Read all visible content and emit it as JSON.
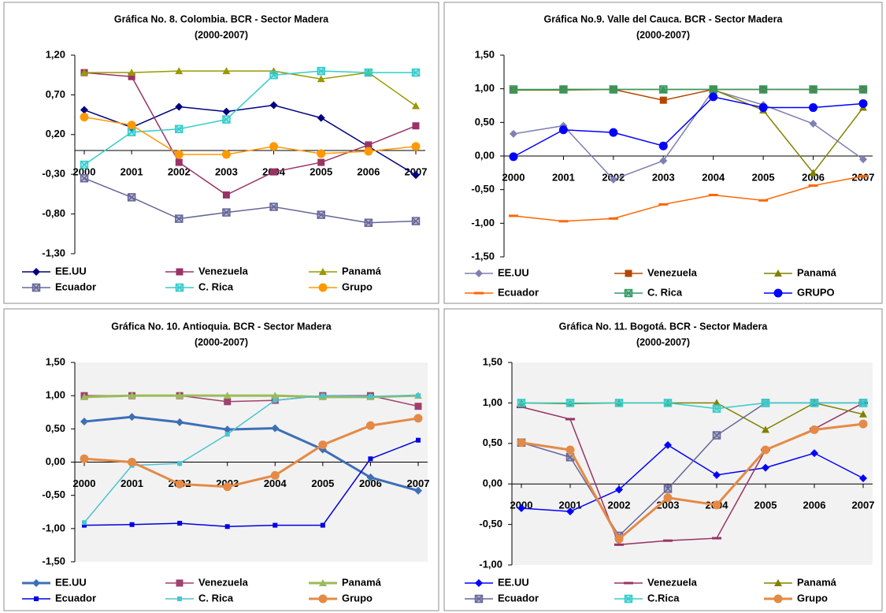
{
  "chart_data": [
    {
      "type": "line",
      "title": "Gráfica No. 8.  Colombia. BCR - Sector Madera",
      "subtitle": "(2000-2007)",
      "categories": [
        "2000",
        "2001",
        "2002",
        "2003",
        "2004",
        "2005",
        "2006",
        "2007"
      ],
      "ylim": [
        -1.3,
        1.2
      ],
      "yticks": [
        {
          "value": -1.3,
          "label": "-1,30"
        },
        {
          "value": -0.8,
          "label": "-0,80"
        },
        {
          "value": -0.3,
          "label": "-0,30"
        },
        {
          "value": 0.2,
          "label": "0,20"
        },
        {
          "value": 0.7,
          "label": "0,70"
        },
        {
          "value": 1.2,
          "label": "1,20"
        }
      ],
      "legend": "bottom",
      "series": [
        {
          "name": "EE.UU",
          "color": "#000080",
          "marker": "diamond",
          "values": [
            0.51,
            0.29,
            0.55,
            0.49,
            0.57,
            0.41,
            0.05,
            -0.31
          ]
        },
        {
          "name": "Venezuela",
          "color": "#993366",
          "marker": "square",
          "values": [
            0.98,
            0.93,
            -0.15,
            -0.56,
            -0.27,
            -0.15,
            0.07,
            0.31
          ]
        },
        {
          "name": "Panamá",
          "color": "#999900",
          "marker": "triangle",
          "values": [
            0.98,
            0.98,
            1.0,
            1.0,
            1.0,
            0.9,
            0.98,
            0.56
          ]
        },
        {
          "name": "Ecuador",
          "color": "#666699",
          "marker": "square-x",
          "values": [
            -0.35,
            -0.59,
            -0.86,
            -0.78,
            -0.71,
            -0.81,
            -0.91,
            -0.89
          ]
        },
        {
          "name": "C. Rica",
          "color": "#33cccc",
          "marker": "square-x",
          "values": [
            -0.18,
            0.23,
            0.27,
            0.39,
            0.95,
            1.0,
            0.98,
            0.98
          ]
        },
        {
          "name": "Grupo",
          "color": "#ff9900",
          "marker": "circle",
          "values": [
            0.42,
            0.32,
            -0.05,
            -0.05,
            0.05,
            -0.04,
            -0.01,
            0.05
          ]
        }
      ]
    },
    {
      "type": "line",
      "title": "Gráfica No.9. Valle del Cauca. BCR  - Sector Madera",
      "subtitle": "(2000-2007)",
      "categories": [
        "2000",
        "2001",
        "2002",
        "2003",
        "2004",
        "2005",
        "2006",
        "2007"
      ],
      "ylim": [
        -1.5,
        1.5
      ],
      "yticks": [
        {
          "value": -1.5,
          "label": "-1,50"
        },
        {
          "value": -1.0,
          "label": "-1,00"
        },
        {
          "value": -0.5,
          "label": "-0,50"
        },
        {
          "value": 0,
          "label": "0,00"
        },
        {
          "value": 0.5,
          "label": "0,50"
        },
        {
          "value": 1.0,
          "label": "1,00"
        },
        {
          "value": 1.5,
          "label": "1,50"
        }
      ],
      "legend": "bottom",
      "series": [
        {
          "name": "EE.UU",
          "color": "#7f7fb2",
          "marker": "diamond",
          "values": [
            0.33,
            0.45,
            -0.35,
            -0.07,
            0.98,
            0.76,
            0.48,
            -0.05
          ]
        },
        {
          "name": "Venezuela",
          "color": "#b34700",
          "marker": "square",
          "values": [
            0.98,
            0.99,
            0.99,
            0.83,
            0.99,
            0.99,
            0.99,
            0.99
          ]
        },
        {
          "name": "Panamá",
          "color": "#808000",
          "marker": "triangle",
          "values": [
            0.98,
            0.98,
            0.99,
            0.99,
            0.99,
            0.68,
            -0.25,
            0.72
          ]
        },
        {
          "name": "Ecuador",
          "color": "#ff6600",
          "marker": "dash",
          "values": [
            -0.89,
            -0.97,
            -0.93,
            -0.72,
            -0.58,
            -0.66,
            -0.44,
            -0.3
          ]
        },
        {
          "name": "C. Rica",
          "color": "#339966",
          "marker": "square-x",
          "values": [
            0.99,
            0.99,
            0.99,
            0.99,
            0.99,
            0.99,
            0.99,
            0.99
          ]
        },
        {
          "name": "GRUPO",
          "color": "#0000ff",
          "marker": "circle",
          "values": [
            -0.01,
            0.39,
            0.35,
            0.15,
            0.88,
            0.72,
            0.72,
            0.78
          ]
        }
      ]
    },
    {
      "type": "line",
      "title": "Gráfica No. 10. Antioquia. BCR - Sector Madera",
      "subtitle": "(2000-2007)",
      "categories": [
        "2000",
        "2001",
        "2002",
        "2003",
        "2004",
        "2005",
        "2006",
        "2007"
      ],
      "ylim": [
        -1.5,
        1.5
      ],
      "yticks": [
        {
          "value": -1.5,
          "label": "-1,50"
        },
        {
          "value": -1.0,
          "label": "-1,00"
        },
        {
          "value": -0.5,
          "label": "-0,50"
        },
        {
          "value": 0,
          "label": "0,00"
        },
        {
          "value": 0.5,
          "label": "0,50"
        },
        {
          "value": 1.0,
          "label": "1,00"
        },
        {
          "value": 1.5,
          "label": "1,50"
        }
      ],
      "legend": "bottom",
      "series": [
        {
          "name": "EE.UU",
          "color": "#3d6fb6",
          "marker": "diamond",
          "line_width": 3,
          "values": [
            0.61,
            0.68,
            0.6,
            0.49,
            0.51,
            0.19,
            -0.23,
            -0.43
          ]
        },
        {
          "name": "Venezuela",
          "color": "#a0406e",
          "marker": "square",
          "values": [
            1.0,
            1.0,
            1.0,
            0.91,
            0.93,
            1.0,
            1.0,
            0.84
          ]
        },
        {
          "name": "Panamá",
          "color": "#9bbb59",
          "marker": "triangle",
          "line_width": 3,
          "values": [
            0.98,
            1.0,
            1.0,
            1.0,
            1.0,
            0.98,
            0.98,
            1.0
          ]
        },
        {
          "name": "Ecuador",
          "color": "#0000e0",
          "marker": "small-square",
          "values": [
            -0.95,
            -0.94,
            -0.92,
            -0.97,
            -0.95,
            -0.95,
            0.05,
            0.33
          ]
        },
        {
          "name": "C. Rica",
          "color": "#4bc3d1",
          "marker": "small-square",
          "values": [
            -0.91,
            -0.05,
            -0.02,
            0.42,
            0.93,
            1.0,
            0.99,
            1.0
          ]
        },
        {
          "name": "Grupo",
          "color": "#e48a46",
          "marker": "circle",
          "line_width": 3,
          "values": [
            0.05,
            0.0,
            -0.33,
            -0.37,
            -0.2,
            0.26,
            0.55,
            0.66
          ]
        }
      ]
    },
    {
      "type": "line",
      "title": "Gráfica  No. 11. Bogotá. BCR -  Sector Madera",
      "subtitle": "(2000-2007)",
      "categories": [
        "2000",
        "2001",
        "2002",
        "2003",
        "2004",
        "2005",
        "2006",
        "2007"
      ],
      "ylim": [
        -1.0,
        1.5
      ],
      "yticks": [
        {
          "value": -1.0,
          "label": "-1,00"
        },
        {
          "value": -0.5,
          "label": "-0,50"
        },
        {
          "value": 0,
          "label": "0,00"
        },
        {
          "value": 0.5,
          "label": "0,50"
        },
        {
          "value": 1.0,
          "label": "1,00"
        },
        {
          "value": 1.5,
          "label": "1,50"
        }
      ],
      "legend": "bottom",
      "series": [
        {
          "name": "EE.UU",
          "color": "#0000ff",
          "marker": "diamond",
          "values": [
            -0.3,
            -0.34,
            -0.07,
            0.48,
            0.11,
            0.2,
            0.38,
            0.07
          ]
        },
        {
          "name": "Venezuela",
          "color": "#993366",
          "marker": "dash",
          "values": [
            0.95,
            0.8,
            -0.75,
            -0.7,
            -0.67,
            0.42,
            0.68,
            1.0
          ]
        },
        {
          "name": "Panamá",
          "color": "#808000",
          "marker": "triangle",
          "values": [
            1.0,
            0.99,
            1.0,
            1.0,
            1.0,
            0.67,
            1.0,
            0.86
          ]
        },
        {
          "name": "Ecuador",
          "color": "#666699",
          "marker": "square-x",
          "values": [
            0.51,
            0.33,
            -0.64,
            -0.06,
            0.6,
            1.0,
            1.0,
            1.0
          ]
        },
        {
          "name": "C.Rica",
          "color": "#33cccc",
          "marker": "square-x",
          "values": [
            1.0,
            1.0,
            1.0,
            1.0,
            0.93,
            1.0,
            1.0,
            1.0
          ]
        },
        {
          "name": "Grupo",
          "color": "#e48a46",
          "marker": "circle",
          "line_width": 3,
          "values": [
            0.51,
            0.42,
            -0.68,
            -0.17,
            -0.26,
            0.42,
            0.67,
            0.74
          ]
        }
      ]
    }
  ]
}
